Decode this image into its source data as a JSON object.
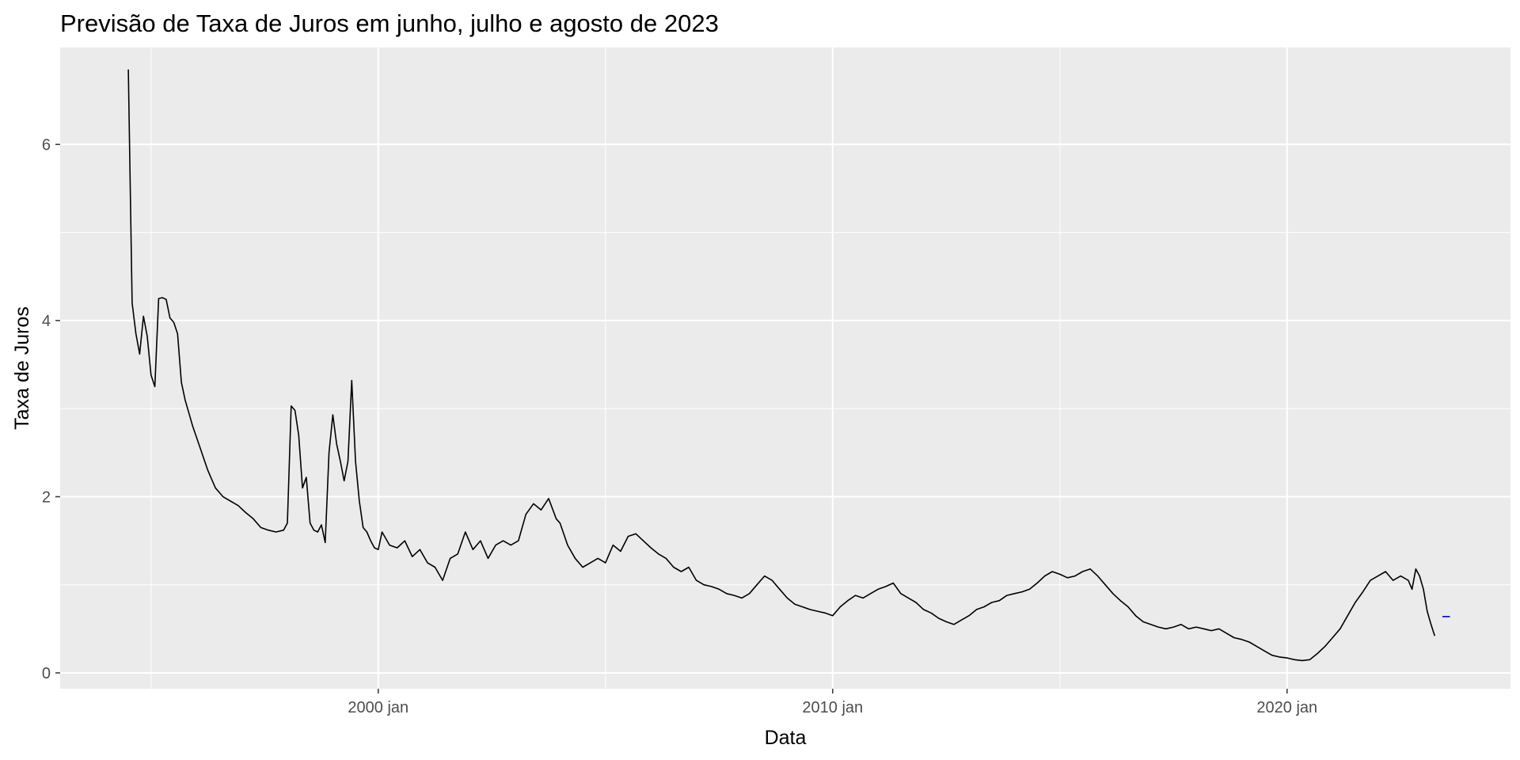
{
  "chart_data": {
    "type": "line",
    "title": "Previsão de Taxa de Juros em junho, julho e agosto de 2023",
    "xlabel": "Data",
    "ylabel": "Taxa de Juros",
    "x_range": [
      "1993-01",
      "2024-12"
    ],
    "ylim": [
      -0.18,
      7.1
    ],
    "x_ticks": [
      {
        "date": "2000-01",
        "label": "2000 jan"
      },
      {
        "date": "2010-01",
        "label": "2010 jan"
      },
      {
        "date": "2020-01",
        "label": "2020 jan"
      }
    ],
    "x_minor_ticks": [
      "1995-01",
      "2005-01",
      "2015-01"
    ],
    "y_ticks": [
      0,
      2,
      4,
      6
    ],
    "y_minor_ticks": [
      1,
      3,
      5
    ],
    "grid": true,
    "background": "#ebebeb",
    "series": [
      {
        "color": "#000000",
        "points": [
          [
            "1994-07",
            6.85
          ],
          [
            "1994-08",
            4.2
          ],
          [
            "1994-09",
            3.85
          ],
          [
            "1994-10",
            3.62
          ],
          [
            "1994-11",
            4.05
          ],
          [
            "1994-12",
            3.82
          ],
          [
            "1995-01",
            3.38
          ],
          [
            "1995-02",
            3.25
          ],
          [
            "1995-03",
            4.25
          ],
          [
            "1995-04",
            4.26
          ],
          [
            "1995-05",
            4.24
          ],
          [
            "1995-06",
            4.03
          ],
          [
            "1995-07",
            3.98
          ],
          [
            "1995-08",
            3.85
          ],
          [
            "1995-09",
            3.3
          ],
          [
            "1995-10",
            3.1
          ],
          [
            "1995-11",
            2.95
          ],
          [
            "1995-12",
            2.8
          ],
          [
            "1996-02",
            2.55
          ],
          [
            "1996-04",
            2.3
          ],
          [
            "1996-06",
            2.1
          ],
          [
            "1996-08",
            2.0
          ],
          [
            "1996-10",
            1.95
          ],
          [
            "1996-12",
            1.9
          ],
          [
            "1997-02",
            1.82
          ],
          [
            "1997-04",
            1.75
          ],
          [
            "1997-06",
            1.65
          ],
          [
            "1997-08",
            1.62
          ],
          [
            "1997-10",
            1.6
          ],
          [
            "1997-12",
            1.62
          ],
          [
            "1998-01",
            1.7
          ],
          [
            "1998-02",
            3.03
          ],
          [
            "1998-03",
            2.98
          ],
          [
            "1998-04",
            2.7
          ],
          [
            "1998-05",
            2.1
          ],
          [
            "1998-06",
            2.22
          ],
          [
            "1998-07",
            1.7
          ],
          [
            "1998-08",
            1.62
          ],
          [
            "1998-09",
            1.6
          ],
          [
            "1998-10",
            1.68
          ],
          [
            "1998-11",
            1.48
          ],
          [
            "1998-12",
            2.5
          ],
          [
            "1999-01",
            2.93
          ],
          [
            "1999-02",
            2.6
          ],
          [
            "1999-03",
            2.4
          ],
          [
            "1999-04",
            2.18
          ],
          [
            "1999-05",
            2.4
          ],
          [
            "1999-06",
            3.32
          ],
          [
            "1999-07",
            2.4
          ],
          [
            "1999-08",
            1.95
          ],
          [
            "1999-09",
            1.65
          ],
          [
            "1999-10",
            1.6
          ],
          [
            "1999-11",
            1.5
          ],
          [
            "1999-12",
            1.42
          ],
          [
            "2000-01",
            1.4
          ],
          [
            "2000-02",
            1.6
          ],
          [
            "2000-04",
            1.45
          ],
          [
            "2000-06",
            1.42
          ],
          [
            "2000-08",
            1.5
          ],
          [
            "2000-10",
            1.32
          ],
          [
            "2000-12",
            1.4
          ],
          [
            "2001-02",
            1.25
          ],
          [
            "2001-04",
            1.2
          ],
          [
            "2001-06",
            1.05
          ],
          [
            "2001-08",
            1.3
          ],
          [
            "2001-10",
            1.35
          ],
          [
            "2001-12",
            1.6
          ],
          [
            "2002-02",
            1.4
          ],
          [
            "2002-04",
            1.5
          ],
          [
            "2002-06",
            1.3
          ],
          [
            "2002-08",
            1.45
          ],
          [
            "2002-10",
            1.5
          ],
          [
            "2002-12",
            1.45
          ],
          [
            "2003-02",
            1.5
          ],
          [
            "2003-04",
            1.8
          ],
          [
            "2003-06",
            1.92
          ],
          [
            "2003-08",
            1.85
          ],
          [
            "2003-10",
            1.98
          ],
          [
            "2003-12",
            1.75
          ],
          [
            "2004-01",
            1.7
          ],
          [
            "2004-03",
            1.45
          ],
          [
            "2004-05",
            1.3
          ],
          [
            "2004-07",
            1.2
          ],
          [
            "2004-09",
            1.25
          ],
          [
            "2004-11",
            1.3
          ],
          [
            "2005-01",
            1.25
          ],
          [
            "2005-03",
            1.45
          ],
          [
            "2005-05",
            1.38
          ],
          [
            "2005-07",
            1.55
          ],
          [
            "2005-09",
            1.58
          ],
          [
            "2005-11",
            1.5
          ],
          [
            "2006-01",
            1.42
          ],
          [
            "2006-03",
            1.35
          ],
          [
            "2006-05",
            1.3
          ],
          [
            "2006-07",
            1.2
          ],
          [
            "2006-09",
            1.15
          ],
          [
            "2006-11",
            1.2
          ],
          [
            "2007-01",
            1.05
          ],
          [
            "2007-03",
            1.0
          ],
          [
            "2007-05",
            0.98
          ],
          [
            "2007-07",
            0.95
          ],
          [
            "2007-09",
            0.9
          ],
          [
            "2007-11",
            0.88
          ],
          [
            "2008-01",
            0.85
          ],
          [
            "2008-03",
            0.9
          ],
          [
            "2008-05",
            1.0
          ],
          [
            "2008-07",
            1.1
          ],
          [
            "2008-09",
            1.05
          ],
          [
            "2008-11",
            0.95
          ],
          [
            "2009-01",
            0.85
          ],
          [
            "2009-03",
            0.78
          ],
          [
            "2009-05",
            0.75
          ],
          [
            "2009-07",
            0.72
          ],
          [
            "2009-09",
            0.7
          ],
          [
            "2009-11",
            0.68
          ],
          [
            "2010-01",
            0.65
          ],
          [
            "2010-03",
            0.75
          ],
          [
            "2010-05",
            0.82
          ],
          [
            "2010-07",
            0.88
          ],
          [
            "2010-09",
            0.85
          ],
          [
            "2010-11",
            0.9
          ],
          [
            "2011-01",
            0.95
          ],
          [
            "2011-03",
            0.98
          ],
          [
            "2011-05",
            1.02
          ],
          [
            "2011-07",
            0.9
          ],
          [
            "2011-09",
            0.85
          ],
          [
            "2011-11",
            0.8
          ],
          [
            "2012-01",
            0.72
          ],
          [
            "2012-03",
            0.68
          ],
          [
            "2012-05",
            0.62
          ],
          [
            "2012-07",
            0.58
          ],
          [
            "2012-09",
            0.55
          ],
          [
            "2012-11",
            0.6
          ],
          [
            "2013-01",
            0.65
          ],
          [
            "2013-03",
            0.72
          ],
          [
            "2013-05",
            0.75
          ],
          [
            "2013-07",
            0.8
          ],
          [
            "2013-09",
            0.82
          ],
          [
            "2013-11",
            0.88
          ],
          [
            "2014-01",
            0.9
          ],
          [
            "2014-03",
            0.92
          ],
          [
            "2014-05",
            0.95
          ],
          [
            "2014-07",
            1.02
          ],
          [
            "2014-09",
            1.1
          ],
          [
            "2014-11",
            1.15
          ],
          [
            "2015-01",
            1.12
          ],
          [
            "2015-03",
            1.08
          ],
          [
            "2015-05",
            1.1
          ],
          [
            "2015-07",
            1.15
          ],
          [
            "2015-09",
            1.18
          ],
          [
            "2015-11",
            1.1
          ],
          [
            "2016-01",
            1.0
          ],
          [
            "2016-03",
            0.9
          ],
          [
            "2016-05",
            0.82
          ],
          [
            "2016-07",
            0.75
          ],
          [
            "2016-09",
            0.65
          ],
          [
            "2016-11",
            0.58
          ],
          [
            "2017-01",
            0.55
          ],
          [
            "2017-03",
            0.52
          ],
          [
            "2017-05",
            0.5
          ],
          [
            "2017-07",
            0.52
          ],
          [
            "2017-09",
            0.55
          ],
          [
            "2017-11",
            0.5
          ],
          [
            "2018-01",
            0.52
          ],
          [
            "2018-03",
            0.5
          ],
          [
            "2018-05",
            0.48
          ],
          [
            "2018-07",
            0.5
          ],
          [
            "2018-09",
            0.45
          ],
          [
            "2018-11",
            0.4
          ],
          [
            "2019-01",
            0.38
          ],
          [
            "2019-03",
            0.35
          ],
          [
            "2019-05",
            0.3
          ],
          [
            "2019-07",
            0.25
          ],
          [
            "2019-09",
            0.2
          ],
          [
            "2019-11",
            0.18
          ],
          [
            "2020-01",
            0.17
          ],
          [
            "2020-03",
            0.15
          ],
          [
            "2020-05",
            0.14
          ],
          [
            "2020-07",
            0.15
          ],
          [
            "2020-09",
            0.22
          ],
          [
            "2020-11",
            0.3
          ],
          [
            "2021-01",
            0.4
          ],
          [
            "2021-03",
            0.5
          ],
          [
            "2021-05",
            0.65
          ],
          [
            "2021-07",
            0.8
          ],
          [
            "2021-09",
            0.92
          ],
          [
            "2021-11",
            1.05
          ],
          [
            "2022-01",
            1.1
          ],
          [
            "2022-03",
            1.15
          ],
          [
            "2022-05",
            1.05
          ],
          [
            "2022-07",
            1.1
          ],
          [
            "2022-09",
            1.05
          ],
          [
            "2022-10",
            0.95
          ],
          [
            "2022-11",
            1.18
          ],
          [
            "2022-12",
            1.1
          ],
          [
            "2023-01",
            0.95
          ],
          [
            "2023-02",
            0.7
          ],
          [
            "2023-03",
            0.55
          ],
          [
            "2023-04",
            0.42
          ]
        ]
      },
      {
        "color": "#0000ff",
        "points": [
          [
            "2023-06",
            0.64
          ],
          [
            "2023-07",
            0.64
          ],
          [
            "2023-08",
            0.64
          ]
        ]
      }
    ]
  }
}
